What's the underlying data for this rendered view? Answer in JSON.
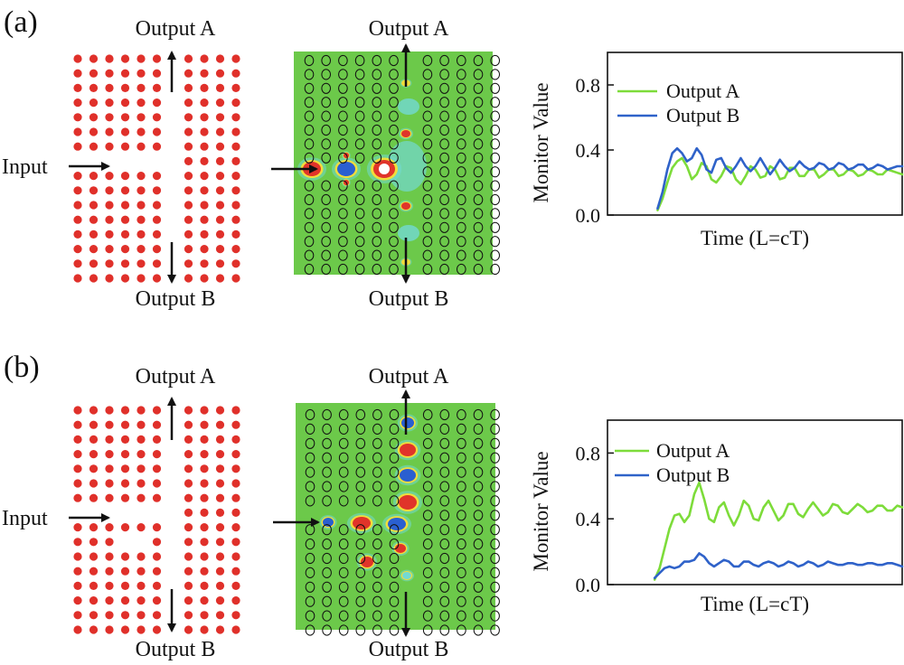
{
  "panels": [
    {
      "letter": "(a)",
      "labels": {
        "input": "Input",
        "output_a_top_lattice": "Output A",
        "output_b_bottom_lattice": "Output B",
        "output_a_top_field": "Output A",
        "output_b_bottom_field": "Output B"
      },
      "chart_data": {
        "type": "line",
        "xlabel": "Time (L=cT)",
        "ylabel": "Monitor Value",
        "ylim": [
          0.0,
          1.0
        ],
        "yticks": [
          "0.0",
          "0.4",
          "0.8"
        ],
        "grid": false,
        "legend_position": "top-left",
        "series": [
          {
            "name": "Output A",
            "color": "#7ddc3a",
            "x": [
              0,
              0.02,
              0.04,
              0.06,
              0.08,
              0.1,
              0.12,
              0.14,
              0.16,
              0.18,
              0.2,
              0.22,
              0.24,
              0.26,
              0.28,
              0.3,
              0.32,
              0.34,
              0.36,
              0.38,
              0.4,
              0.42,
              0.44,
              0.46,
              0.48,
              0.5,
              0.52,
              0.54,
              0.56,
              0.58,
              0.6,
              0.62,
              0.64,
              0.66,
              0.68,
              0.7,
              0.72,
              0.74,
              0.76,
              0.78,
              0.8,
              0.82,
              0.84,
              0.86,
              0.88,
              0.9,
              0.92,
              0.94,
              0.96,
              0.98,
              1.0
            ],
            "values": [
              0.03,
              0.1,
              0.2,
              0.29,
              0.33,
              0.35,
              0.3,
              0.22,
              0.25,
              0.32,
              0.3,
              0.22,
              0.2,
              0.24,
              0.3,
              0.29,
              0.22,
              0.19,
              0.24,
              0.3,
              0.28,
              0.23,
              0.24,
              0.3,
              0.28,
              0.22,
              0.23,
              0.29,
              0.29,
              0.24,
              0.24,
              0.28,
              0.28,
              0.23,
              0.25,
              0.28,
              0.28,
              0.24,
              0.25,
              0.28,
              0.27,
              0.24,
              0.25,
              0.28,
              0.27,
              0.25,
              0.25,
              0.28,
              0.27,
              0.26,
              0.25
            ]
          },
          {
            "name": "Output B",
            "color": "#2f62c9",
            "x": [
              0,
              0.02,
              0.04,
              0.06,
              0.08,
              0.1,
              0.12,
              0.14,
              0.16,
              0.18,
              0.2,
              0.22,
              0.24,
              0.26,
              0.28,
              0.3,
              0.32,
              0.34,
              0.36,
              0.38,
              0.4,
              0.42,
              0.44,
              0.46,
              0.48,
              0.5,
              0.52,
              0.54,
              0.56,
              0.58,
              0.6,
              0.62,
              0.64,
              0.66,
              0.68,
              0.7,
              0.72,
              0.74,
              0.76,
              0.78,
              0.8,
              0.82,
              0.84,
              0.86,
              0.88,
              0.9,
              0.92,
              0.94,
              0.96,
              0.98,
              1.0
            ],
            "values": [
              0.04,
              0.14,
              0.28,
              0.38,
              0.41,
              0.38,
              0.33,
              0.35,
              0.41,
              0.37,
              0.28,
              0.26,
              0.34,
              0.35,
              0.29,
              0.26,
              0.3,
              0.35,
              0.3,
              0.27,
              0.3,
              0.35,
              0.3,
              0.25,
              0.29,
              0.34,
              0.3,
              0.27,
              0.29,
              0.33,
              0.3,
              0.28,
              0.29,
              0.32,
              0.31,
              0.28,
              0.29,
              0.32,
              0.31,
              0.28,
              0.29,
              0.31,
              0.31,
              0.28,
              0.29,
              0.31,
              0.3,
              0.28,
              0.29,
              0.3,
              0.3
            ]
          }
        ]
      }
    },
    {
      "letter": "(b)",
      "labels": {
        "input": "Input",
        "output_a_top_lattice": "Output A",
        "output_b_bottom_lattice": "Output B",
        "output_a_top_field": "Output A",
        "output_b_bottom_field": "Output B"
      },
      "chart_data": {
        "type": "line",
        "xlabel": "Time (L=cT)",
        "ylabel": "Monitor Value",
        "ylim": [
          0.0,
          1.0
        ],
        "yticks": [
          "0.0",
          "0.4",
          "0.8"
        ],
        "grid": false,
        "legend_position": "top-left",
        "series": [
          {
            "name": "Output A",
            "color": "#7ddc3a",
            "x": [
              0,
              0.02,
              0.04,
              0.06,
              0.08,
              0.1,
              0.12,
              0.14,
              0.16,
              0.18,
              0.2,
              0.22,
              0.24,
              0.26,
              0.28,
              0.3,
              0.32,
              0.34,
              0.36,
              0.38,
              0.4,
              0.42,
              0.44,
              0.46,
              0.48,
              0.5,
              0.52,
              0.54,
              0.56,
              0.58,
              0.6,
              0.62,
              0.64,
              0.66,
              0.68,
              0.7,
              0.72,
              0.74,
              0.76,
              0.78,
              0.8,
              0.82,
              0.84,
              0.86,
              0.88,
              0.9,
              0.92,
              0.94,
              0.96,
              0.98,
              1.0
            ],
            "values": [
              0.03,
              0.1,
              0.22,
              0.34,
              0.42,
              0.43,
              0.38,
              0.42,
              0.55,
              0.62,
              0.52,
              0.4,
              0.38,
              0.47,
              0.5,
              0.42,
              0.36,
              0.42,
              0.51,
              0.48,
              0.4,
              0.39,
              0.47,
              0.51,
              0.45,
              0.39,
              0.42,
              0.49,
              0.49,
              0.43,
              0.41,
              0.46,
              0.5,
              0.46,
              0.42,
              0.44,
              0.49,
              0.48,
              0.44,
              0.43,
              0.46,
              0.49,
              0.47,
              0.44,
              0.45,
              0.48,
              0.48,
              0.45,
              0.45,
              0.48,
              0.47
            ]
          },
          {
            "name": "Output B",
            "color": "#2f62c9",
            "x": [
              0,
              0.02,
              0.04,
              0.06,
              0.08,
              0.1,
              0.12,
              0.14,
              0.16,
              0.18,
              0.2,
              0.22,
              0.24,
              0.26,
              0.28,
              0.3,
              0.32,
              0.34,
              0.36,
              0.38,
              0.4,
              0.42,
              0.44,
              0.46,
              0.48,
              0.5,
              0.52,
              0.54,
              0.56,
              0.58,
              0.6,
              0.62,
              0.64,
              0.66,
              0.68,
              0.7,
              0.72,
              0.74,
              0.76,
              0.78,
              0.8,
              0.82,
              0.84,
              0.86,
              0.88,
              0.9,
              0.92,
              0.94,
              0.96,
              0.98,
              1.0
            ],
            "values": [
              0.04,
              0.07,
              0.1,
              0.11,
              0.1,
              0.11,
              0.14,
              0.14,
              0.15,
              0.19,
              0.17,
              0.13,
              0.11,
              0.13,
              0.15,
              0.14,
              0.11,
              0.11,
              0.14,
              0.14,
              0.12,
              0.11,
              0.13,
              0.14,
              0.13,
              0.11,
              0.12,
              0.14,
              0.13,
              0.11,
              0.12,
              0.14,
              0.13,
              0.11,
              0.12,
              0.14,
              0.13,
              0.12,
              0.12,
              0.13,
              0.13,
              0.12,
              0.12,
              0.13,
              0.13,
              0.12,
              0.12,
              0.13,
              0.13,
              0.12,
              0.11
            ]
          }
        ]
      }
    }
  ],
  "colors": {
    "rod": "#e0302a",
    "field_background": "#6cc94a",
    "field_ring": "#111111",
    "field_red": "#e0342a",
    "field_blue": "#2a5fd0",
    "field_yellow": "#f2dd3a",
    "field_cyan": "#73d9d2"
  }
}
